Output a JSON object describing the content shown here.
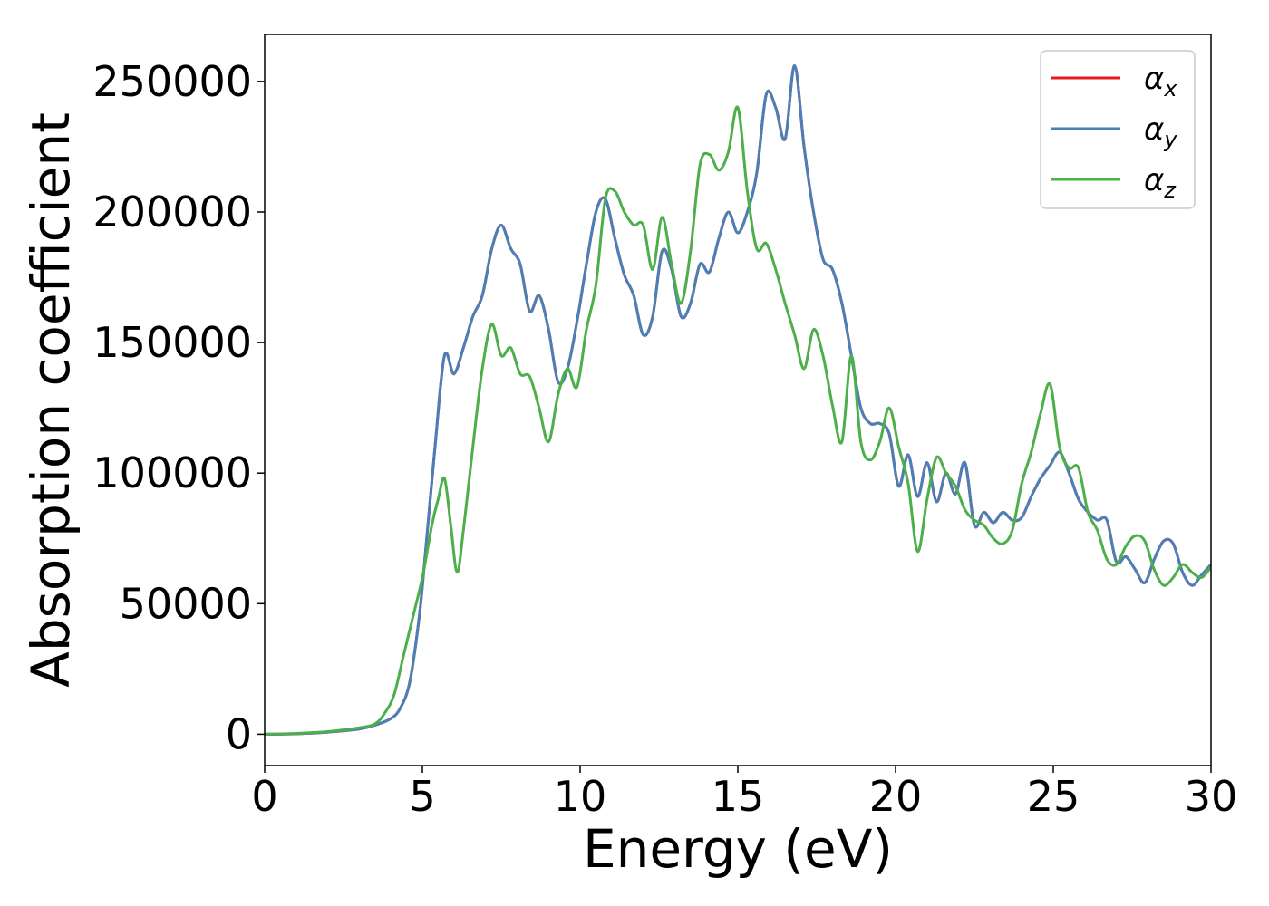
{
  "chart_data": {
    "type": "line",
    "xlabel": "Energy (eV)",
    "ylabel": "Absorption coefficient",
    "xlim": [
      0,
      30
    ],
    "ylim": [
      -12000,
      268000
    ],
    "x_ticks": [
      0,
      5,
      10,
      15,
      20,
      25,
      30
    ],
    "y_ticks": [
      0,
      50000,
      100000,
      150000,
      200000,
      250000
    ],
    "x_tick_labels": [
      "0",
      "5",
      "10",
      "15",
      "20",
      "25",
      "30"
    ],
    "y_tick_labels": [
      "0",
      "50000",
      "100000",
      "150000",
      "200000",
      "250000"
    ],
    "grid": false,
    "legend_position": "top-right",
    "series": [
      {
        "name": "α_x",
        "label_base": "α",
        "label_sub": "x",
        "color": "#e41a1c",
        "x": [
          0,
          1,
          2,
          3,
          3.5,
          4,
          4.3,
          4.6,
          4.9,
          5.1,
          5.4,
          5.7,
          6.0,
          6.3,
          6.6,
          6.9,
          7.2,
          7.5,
          7.8,
          8.1,
          8.4,
          8.7,
          9.0,
          9.3,
          9.6,
          9.9,
          10.2,
          10.5,
          10.8,
          11.1,
          11.4,
          11.7,
          12.0,
          12.3,
          12.6,
          12.9,
          13.2,
          13.5,
          13.8,
          14.1,
          14.4,
          14.7,
          15.0,
          15.3,
          15.6,
          15.9,
          16.2,
          16.5,
          16.8,
          17.1,
          17.4,
          17.7,
          18.0,
          18.3,
          18.6,
          18.9,
          19.2,
          19.5,
          19.8,
          20.1,
          20.4,
          20.7,
          21.0,
          21.3,
          21.6,
          21.9,
          22.2,
          22.5,
          22.8,
          23.1,
          23.4,
          23.7,
          24.0,
          24.3,
          24.6,
          24.9,
          25.2,
          25.5,
          25.8,
          26.1,
          26.4,
          26.7,
          27.0,
          27.3,
          27.6,
          27.9,
          28.2,
          28.5,
          28.8,
          29.1,
          29.4,
          29.7,
          30.0
        ],
        "y": [
          0,
          200,
          800,
          2000,
          3500,
          6000,
          10000,
          20000,
          45000,
          70000,
          110000,
          145000,
          138000,
          148000,
          160000,
          168000,
          186000,
          195000,
          186000,
          180000,
          162000,
          168000,
          155000,
          135000,
          140000,
          158000,
          180000,
          200000,
          205000,
          190000,
          176000,
          168000,
          153000,
          160000,
          185000,
          178000,
          160000,
          165000,
          180000,
          177000,
          190000,
          200000,
          192000,
          200000,
          215000,
          245000,
          240000,
          228000,
          256000,
          225000,
          200000,
          182000,
          178000,
          165000,
          145000,
          125000,
          119000,
          119000,
          115000,
          95000,
          107000,
          91000,
          104000,
          89000,
          100000,
          92000,
          104000,
          80000,
          85000,
          81000,
          85000,
          82000,
          83000,
          91000,
          98000,
          103000,
          108000,
          100000,
          90000,
          85000,
          82000,
          82000,
          66000,
          68000,
          63000,
          58000,
          67000,
          74000,
          73000,
          62000,
          57000,
          61000,
          65000
        ]
      },
      {
        "name": "α_y",
        "label_base": "α",
        "label_sub": "y",
        "color": "#4a7fb8",
        "x": [
          0,
          1,
          2,
          3,
          3.5,
          4,
          4.3,
          4.6,
          4.9,
          5.1,
          5.4,
          5.7,
          6.0,
          6.3,
          6.6,
          6.9,
          7.2,
          7.5,
          7.8,
          8.1,
          8.4,
          8.7,
          9.0,
          9.3,
          9.6,
          9.9,
          10.2,
          10.5,
          10.8,
          11.1,
          11.4,
          11.7,
          12.0,
          12.3,
          12.6,
          12.9,
          13.2,
          13.5,
          13.8,
          14.1,
          14.4,
          14.7,
          15.0,
          15.3,
          15.6,
          15.9,
          16.2,
          16.5,
          16.8,
          17.1,
          17.4,
          17.7,
          18.0,
          18.3,
          18.6,
          18.9,
          19.2,
          19.5,
          19.8,
          20.1,
          20.4,
          20.7,
          21.0,
          21.3,
          21.6,
          21.9,
          22.2,
          22.5,
          22.8,
          23.1,
          23.4,
          23.7,
          24.0,
          24.3,
          24.6,
          24.9,
          25.2,
          25.5,
          25.8,
          26.1,
          26.4,
          26.7,
          27.0,
          27.3,
          27.6,
          27.9,
          28.2,
          28.5,
          28.8,
          29.1,
          29.4,
          29.7,
          30.0
        ],
        "y": [
          0,
          200,
          800,
          2000,
          3500,
          6000,
          10000,
          20000,
          45000,
          70000,
          110000,
          145000,
          138000,
          148000,
          160000,
          168000,
          186000,
          195000,
          186000,
          180000,
          162000,
          168000,
          155000,
          135000,
          140000,
          158000,
          180000,
          200000,
          205000,
          190000,
          176000,
          168000,
          153000,
          160000,
          185000,
          178000,
          160000,
          165000,
          180000,
          177000,
          190000,
          200000,
          192000,
          200000,
          215000,
          245000,
          240000,
          228000,
          256000,
          225000,
          200000,
          182000,
          178000,
          165000,
          145000,
          125000,
          119000,
          119000,
          115000,
          95000,
          107000,
          91000,
          104000,
          89000,
          100000,
          92000,
          104000,
          80000,
          85000,
          81000,
          85000,
          82000,
          83000,
          91000,
          98000,
          103000,
          108000,
          100000,
          90000,
          85000,
          82000,
          82000,
          66000,
          68000,
          63000,
          58000,
          67000,
          74000,
          73000,
          62000,
          57000,
          61000,
          65000
        ]
      },
      {
        "name": "α_z",
        "label_base": "α",
        "label_sub": "z",
        "color": "#4daf4a",
        "x": [
          0,
          1,
          2,
          3,
          3.5,
          3.8,
          4.1,
          4.4,
          4.7,
          5.0,
          5.3,
          5.5,
          5.7,
          5.9,
          6.1,
          6.3,
          6.6,
          6.9,
          7.2,
          7.5,
          7.8,
          8.1,
          8.4,
          8.7,
          9.0,
          9.3,
          9.6,
          9.9,
          10.2,
          10.5,
          10.8,
          11.1,
          11.4,
          11.7,
          12.0,
          12.3,
          12.6,
          12.9,
          13.2,
          13.5,
          13.8,
          14.1,
          14.4,
          14.7,
          15.0,
          15.3,
          15.6,
          15.9,
          16.2,
          16.5,
          16.8,
          17.1,
          17.4,
          17.7,
          18.0,
          18.3,
          18.6,
          18.9,
          19.2,
          19.5,
          19.8,
          20.1,
          20.4,
          20.7,
          21.0,
          21.3,
          21.6,
          21.9,
          22.2,
          22.5,
          22.8,
          23.1,
          23.4,
          23.7,
          24.0,
          24.3,
          24.6,
          24.9,
          25.2,
          25.5,
          25.8,
          26.1,
          26.4,
          26.7,
          27.0,
          27.3,
          27.6,
          27.9,
          28.2,
          28.5,
          28.8,
          29.1,
          29.4,
          29.7,
          30.0
        ],
        "y": [
          0,
          300,
          1000,
          2500,
          4000,
          8000,
          15000,
          30000,
          45000,
          60000,
          80000,
          90000,
          98000,
          80000,
          62000,
          78000,
          110000,
          140000,
          157000,
          145000,
          148000,
          138000,
          137000,
          125000,
          112000,
          130000,
          140000,
          133000,
          155000,
          172000,
          205000,
          208000,
          200000,
          195000,
          195000,
          178000,
          198000,
          180000,
          165000,
          185000,
          218000,
          222000,
          216000,
          223000,
          240000,
          208000,
          186000,
          188000,
          178000,
          165000,
          153000,
          140000,
          155000,
          145000,
          126000,
          112000,
          145000,
          112000,
          105000,
          112000,
          125000,
          110000,
          96000,
          70000,
          90000,
          106000,
          100000,
          95000,
          86000,
          82000,
          80000,
          75000,
          73000,
          78000,
          96000,
          108000,
          123000,
          134000,
          110000,
          102000,
          102000,
          85000,
          78000,
          67000,
          65000,
          72000,
          76000,
          74000,
          63000,
          57000,
          60000,
          65000,
          62000,
          60000,
          64000
        ]
      }
    ]
  }
}
